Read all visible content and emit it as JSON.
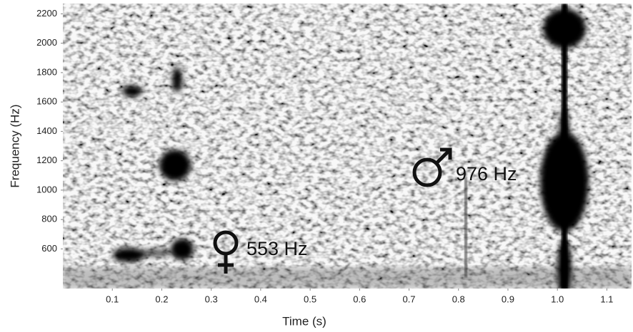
{
  "chart_data": {
    "type": "spectrogram",
    "x_label": "Time (s)",
    "y_label": "Frequency (Hz)",
    "annotations": [
      "553 Hz",
      "976 Hz"
    ],
    "xlim": [
      0,
      1.15
    ],
    "ylim": [
      330,
      2270
    ],
    "xticks": [
      0.1,
      0.2,
      0.3,
      0.4,
      0.5,
      0.6,
      0.7,
      0.8,
      0.9,
      {
        "value": 1,
        "label": "1.0"
      },
      1.1
    ],
    "yticks": [
      600,
      800,
      1000,
      1200,
      1400,
      1600,
      1800,
      2000,
      2200
    ]
  }
}
